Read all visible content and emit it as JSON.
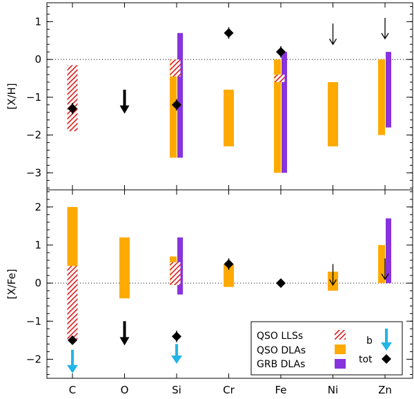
{
  "colors": {
    "qso_lls": "#dd2222",
    "qso_dla": "#ffaa00",
    "grb_dla": "#8833dd",
    "b_arrow": "#22b5e6",
    "tot": "#000000",
    "axis": "#000000"
  },
  "chart_data": [
    {
      "type": "range-bar",
      "panel": "top",
      "ylabel": "[X/H]",
      "ylim": [
        -3.45,
        1.5
      ],
      "ytick_labels": [
        "−3",
        "−2",
        "−1",
        "0",
        "1"
      ],
      "ytick_values": [
        -3,
        -2,
        -1,
        0,
        1
      ],
      "minor_ytick_step": 0.2,
      "reference_line": 0,
      "qso_lls": [
        {
          "element": "C",
          "low": -1.9,
          "high": -0.15
        },
        {
          "element": "Si",
          "low": -0.45,
          "high": 0.0
        },
        {
          "element": "Fe",
          "low": -0.6,
          "high": -0.4
        }
      ],
      "qso_dla": [
        {
          "element": "Si",
          "low": -2.6,
          "high": 0.0
        },
        {
          "element": "Cr",
          "low": -2.3,
          "high": -0.8
        },
        {
          "element": "Fe",
          "low": -3.0,
          "high": 0.0
        },
        {
          "element": "Ni",
          "low": -2.3,
          "high": -0.6
        },
        {
          "element": "Zn",
          "low": -2.0,
          "high": 0.0
        }
      ],
      "grb_dla": [
        {
          "element": "Si",
          "low": -2.6,
          "high": 0.7
        },
        {
          "element": "Fe",
          "low": -3.0,
          "high": 0.2
        },
        {
          "element": "Zn",
          "low": -1.8,
          "high": 0.2
        }
      ],
      "tot": [
        {
          "element": "C",
          "value": -1.3,
          "err": 0.15
        },
        {
          "element": "Si",
          "value": -1.2,
          "err": 0.15
        },
        {
          "element": "Cr",
          "value": 0.7,
          "err": 0.15
        },
        {
          "element": "Fe",
          "value": 0.2,
          "err": 0.15
        }
      ],
      "tot_upper_limits": [
        {
          "element": "O",
          "from": -0.8,
          "to": -1.4,
          "style": "bold"
        },
        {
          "element": "Ni",
          "from": 0.95,
          "to": 0.4,
          "style": "thin"
        },
        {
          "element": "Zn",
          "from": 1.1,
          "to": 0.55,
          "style": "thin"
        }
      ],
      "b_upper_limits": []
    },
    {
      "type": "range-bar",
      "panel": "bottom",
      "ylabel": "[X/Fe]",
      "ylim": [
        -2.5,
        2.45
      ],
      "ytick_labels": [
        "−2",
        "−1",
        "0",
        "1",
        "2"
      ],
      "ytick_values": [
        -2,
        -1,
        0,
        1,
        2
      ],
      "minor_ytick_step": 0.2,
      "reference_line": 0,
      "qso_lls": [
        {
          "element": "C",
          "low": -1.5,
          "high": 0.45
        },
        {
          "element": "Si",
          "low": -0.05,
          "high": 0.55
        }
      ],
      "qso_dla": [
        {
          "element": "C",
          "low": -1.5,
          "high": 2.0
        },
        {
          "element": "O",
          "low": -0.4,
          "high": 1.2
        },
        {
          "element": "Si",
          "low": -0.05,
          "high": 0.7
        },
        {
          "element": "Cr",
          "low": -0.1,
          "high": 0.5
        },
        {
          "element": "Ni",
          "low": -0.2,
          "high": 0.3
        },
        {
          "element": "Zn",
          "low": 0.0,
          "high": 1.0
        }
      ],
      "grb_dla": [
        {
          "element": "Si",
          "low": -0.3,
          "high": 1.2
        },
        {
          "element": "Zn",
          "low": 0.0,
          "high": 1.7
        }
      ],
      "tot": [
        {
          "element": "C",
          "value": -1.5,
          "err": 0.1
        },
        {
          "element": "Si",
          "value": -1.4,
          "err": 0.15
        },
        {
          "element": "Cr",
          "value": 0.5,
          "err": 0.15
        },
        {
          "element": "Fe",
          "value": 0.0,
          "err": 0.0
        }
      ],
      "tot_upper_limits": [
        {
          "element": "O",
          "from": -1.0,
          "to": -1.6,
          "style": "bold"
        },
        {
          "element": "Ni",
          "from": 0.5,
          "to": -0.05,
          "style": "thin"
        },
        {
          "element": "Zn",
          "from": 0.65,
          "to": 0.1,
          "style": "thin"
        }
      ],
      "b_upper_limits": [
        {
          "element": "C",
          "from": -1.75,
          "to": -2.35
        },
        {
          "element": "Si",
          "from": -1.6,
          "to": -2.1
        }
      ]
    }
  ],
  "x_categories": [
    "C",
    "O",
    "Si",
    "Cr",
    "Fe",
    "Ni",
    "Zn"
  ],
  "legend": {
    "qso_lls": "QSO  LLSs",
    "qso_dla": "QSO  DLAs",
    "grb_dla": "GRB  DLAs",
    "b": "b",
    "tot": "tot"
  }
}
